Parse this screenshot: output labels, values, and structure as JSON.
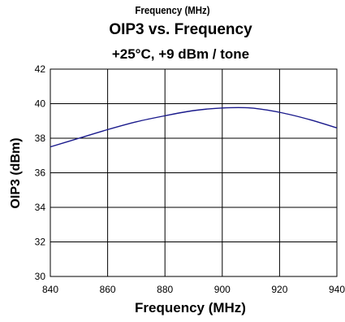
{
  "header": {
    "supertitle": "Frequency (MHz)"
  },
  "chart_data": {
    "type": "line",
    "title": "OIP3 vs. Frequency",
    "subtitle": "+25°C, +9 dBm / tone",
    "xlabel": "Frequency (MHz)",
    "ylabel": "OIP3 (dBm)",
    "xlim": [
      840,
      940
    ],
    "ylim": [
      30,
      42
    ],
    "xticks": [
      "840",
      "860",
      "880",
      "900",
      "920",
      "940"
    ],
    "yticks": [
      "42",
      "40",
      "38",
      "36",
      "34",
      "32",
      "30"
    ],
    "grid": true,
    "line_color": "#1a1a8c",
    "series": [
      {
        "x": [
          840,
          850,
          860,
          870,
          880,
          890,
          900,
          910,
          920,
          930,
          940
        ],
        "values": [
          37.5,
          38.0,
          38.5,
          38.95,
          39.3,
          39.6,
          39.75,
          39.75,
          39.5,
          39.1,
          38.6
        ]
      }
    ]
  }
}
